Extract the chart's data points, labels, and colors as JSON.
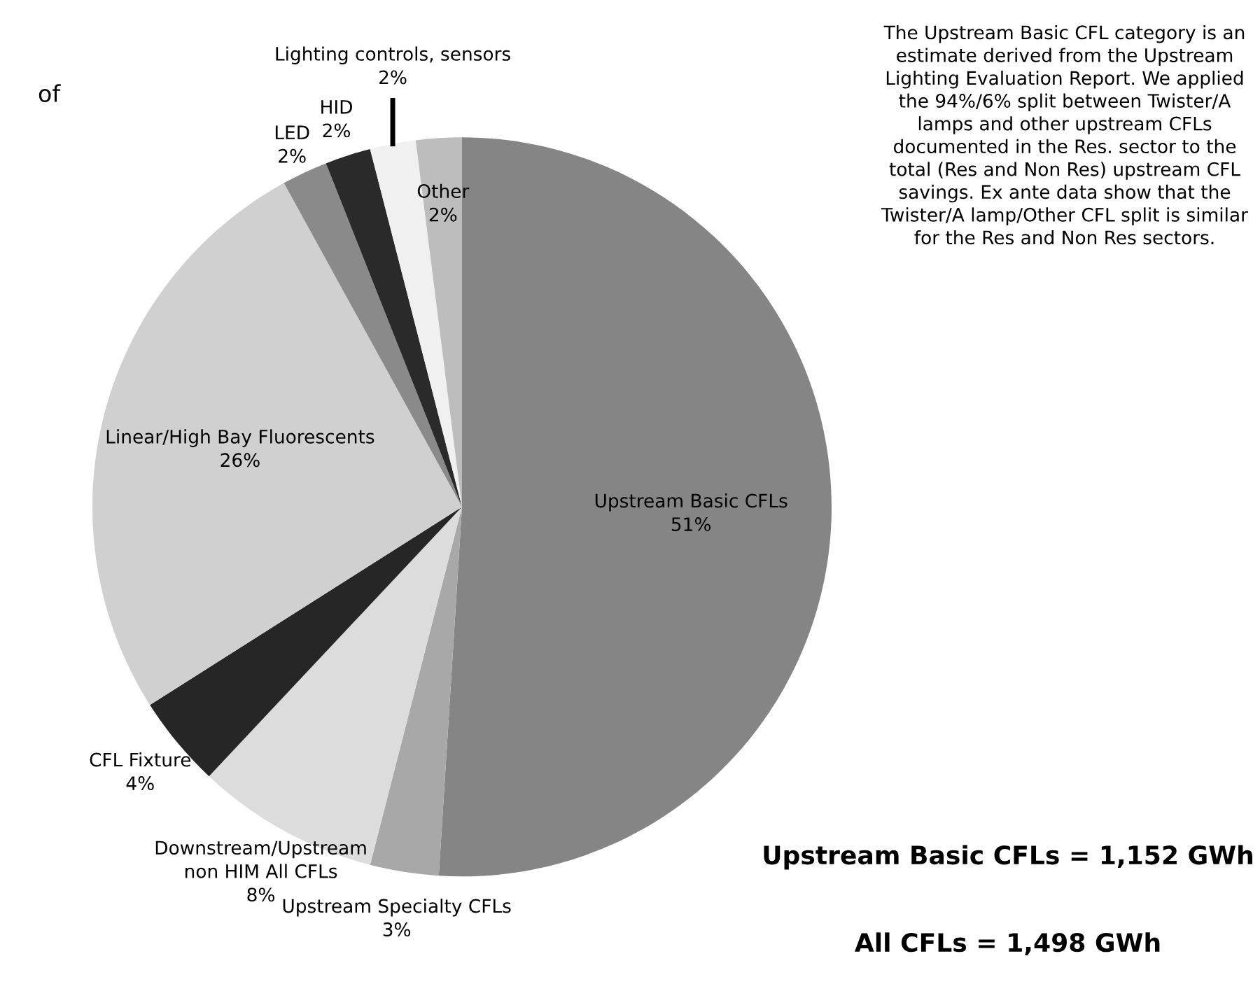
{
  "chart_data": {
    "type": "pie",
    "categories": [
      "Upstream Basic CFLs",
      "Upstream Specialty CFLs",
      "Downstream/Upstream\nnon HIM All CFLs",
      "CFL Fixture",
      "Linear/High Bay Fluorescents",
      "LED",
      "HID",
      "Lighting controls, sensors",
      "Other"
    ],
    "values": [
      51,
      3,
      8,
      4,
      26,
      2,
      2,
      2,
      2
    ],
    "value_labels": [
      "51%",
      "3%",
      "8%",
      "4%",
      "26%",
      "2%",
      "2%",
      "2%",
      "2%"
    ],
    "colors": [
      "#858585",
      "#a8a8a8",
      "#dcdcdc",
      "#262626",
      "#d0d0d0",
      "#8a8a8a",
      "#2a2a2a",
      "#f0f0f0",
      "#bdbdbd"
    ],
    "annotations": [
      "of",
      "The Upstream Basic CFL category is an estimate derived from the Upstream Lighting Evaluation Report. We applied the 94%/6% split between Twister/A lamps and other upstream CFLs documented in the Res. sector to the total (Res and Non Res) upstream CFL savings. Ex ante data show that the Twister/A lamp/Other CFL split is similar for the Res and Non Res sectors.",
      "Upstream Basic CFLs = 1,152 GWh",
      "All CFLs = 1,498 GWh"
    ]
  }
}
